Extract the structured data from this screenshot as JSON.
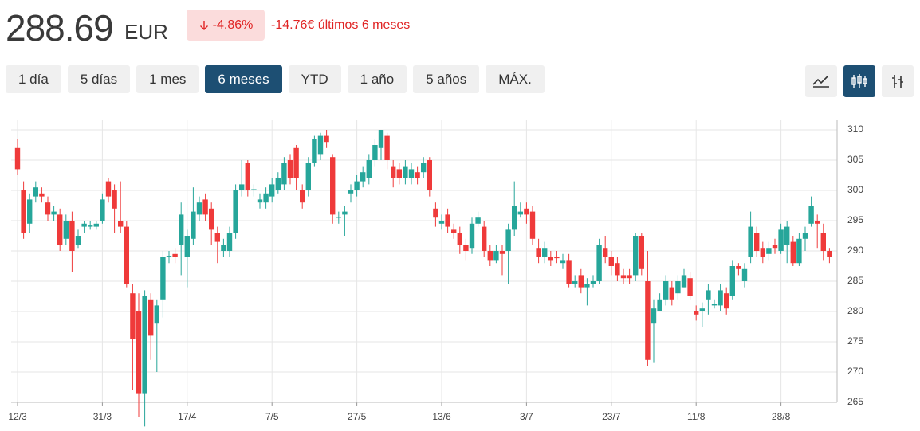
{
  "header": {
    "price": "288.69",
    "currency": "EUR",
    "change_percent": "-4.86%",
    "change_text": "-14.76€ últimos 6 meses"
  },
  "range_buttons": [
    {
      "label": "1 día",
      "selected": false
    },
    {
      "label": "5 días",
      "selected": false
    },
    {
      "label": "1 mes",
      "selected": false
    },
    {
      "label": "6 meses",
      "selected": true
    },
    {
      "label": "YTD",
      "selected": false
    },
    {
      "label": "1 año",
      "selected": false
    },
    {
      "label": "5 años",
      "selected": false
    },
    {
      "label": "MÁX.",
      "selected": false
    }
  ],
  "chart_data": {
    "type": "candlestick",
    "up_color": "#26a69a",
    "down_color": "#ef3a3a",
    "grid": true,
    "ylim": [
      265,
      310
    ],
    "yticks": [
      265,
      270,
      275,
      280,
      285,
      290,
      295,
      300,
      305,
      310
    ],
    "categories": [
      "12/3",
      null,
      null,
      null,
      null,
      null,
      null,
      null,
      null,
      null,
      null,
      null,
      null,
      null,
      "31/3",
      null,
      null,
      null,
      null,
      null,
      null,
      null,
      null,
      null,
      null,
      null,
      null,
      null,
      "17/4",
      null,
      null,
      null,
      null,
      null,
      null,
      null,
      null,
      null,
      null,
      null,
      null,
      null,
      "7/5",
      null,
      null,
      null,
      null,
      null,
      null,
      null,
      null,
      null,
      null,
      null,
      null,
      null,
      "27/5",
      null,
      null,
      null,
      null,
      null,
      null,
      null,
      null,
      null,
      null,
      null,
      null,
      null,
      "13/6",
      null,
      null,
      null,
      null,
      null,
      null,
      null,
      null,
      null,
      null,
      null,
      null,
      null,
      "3/7",
      null,
      null,
      null,
      null,
      null,
      null,
      null,
      null,
      null,
      null,
      null,
      null,
      null,
      "23/7",
      null,
      null,
      null,
      null,
      null,
      null,
      null,
      null,
      null,
      null,
      null,
      null,
      null,
      "11/8",
      null,
      null,
      null,
      null,
      null,
      null,
      null,
      null,
      null,
      null,
      null,
      null,
      null,
      "28/8",
      null,
      null,
      null,
      null,
      null,
      null,
      null,
      null
    ],
    "open": [
      307,
      300,
      294.5,
      299,
      299.5,
      298,
      296,
      296,
      292,
      295,
      291,
      294,
      294,
      294,
      295,
      301.5,
      300,
      295,
      294,
      283,
      280,
      266.5,
      282,
      278,
      282,
      289,
      289.5,
      291,
      289,
      292,
      296,
      298.5,
      297,
      293,
      290,
      290,
      293,
      300,
      304.5,
      300,
      298,
      298,
      299,
      300,
      301,
      305,
      307,
      300,
      300,
      304.5,
      306,
      309,
      305.5,
      295.5,
      296,
      299.5,
      300,
      301.5,
      302,
      305,
      307,
      309,
      304,
      303.5,
      302,
      302,
      303,
      303,
      305,
      297,
      294.5,
      296,
      293.5,
      293,
      291,
      290.5,
      294.5,
      294,
      290,
      288.5,
      290,
      290,
      293.5,
      296,
      297,
      296.5,
      290.5,
      289,
      289,
      289,
      288,
      288.5,
      284.5,
      286,
      284,
      284.5,
      285,
      290.5,
      289,
      288,
      286,
      286,
      286,
      292.5,
      285,
      278,
      280,
      282,
      284,
      283,
      284,
      285.5,
      280,
      280,
      282,
      281,
      281,
      283,
      282.5,
      287.5,
      285,
      289,
      293,
      290.5,
      289.5,
      291,
      290,
      291,
      291.5,
      288,
      292,
      294.5,
      295,
      293,
      290
    ],
    "high": [
      308.5,
      301.5,
      299.5,
      301.5,
      300.5,
      299,
      297.5,
      297,
      296,
      296.5,
      293.5,
      295,
      295,
      295,
      299.5,
      302,
      301,
      301.5,
      295,
      284.5,
      283,
      283.5,
      283,
      282,
      290,
      290,
      290.5,
      298,
      293.5,
      300.5,
      299,
      299.5,
      298,
      294,
      292,
      294,
      301,
      305,
      305,
      301,
      299.5,
      300.5,
      302,
      303,
      305.5,
      306,
      307.5,
      301,
      305.5,
      309,
      309.5,
      310,
      306,
      296.5,
      297.5,
      301,
      302.5,
      304,
      306,
      308.5,
      310,
      309.5,
      305,
      304.5,
      305,
      304.5,
      304,
      305.5,
      305.5,
      298,
      296,
      297,
      294.5,
      294,
      292,
      295.5,
      296.5,
      295,
      291,
      291,
      291,
      294.5,
      301.5,
      298,
      298,
      297.5,
      292,
      291.5,
      290,
      290,
      289.5,
      289.5,
      286,
      287,
      285.5,
      286,
      292,
      292.5,
      290,
      289,
      287,
      287,
      293,
      293,
      290,
      282,
      283,
      286,
      285,
      286,
      287,
      286.5,
      281,
      281.5,
      284.5,
      282,
      284.5,
      284,
      288.5,
      288,
      288,
      296.5,
      294,
      291.5,
      291.5,
      292,
      294.5,
      295,
      292.5,
      293,
      294,
      299,
      296,
      294.5,
      290.5
    ],
    "low": [
      302.5,
      292,
      293,
      298,
      298,
      295,
      295,
      290,
      291,
      286.5,
      290.5,
      293,
      293.5,
      293.5,
      294.5,
      298,
      293,
      293,
      284,
      267,
      262.5,
      261,
      272,
      270,
      279,
      288,
      288,
      286,
      284,
      291,
      295,
      295,
      291,
      288,
      289,
      289,
      292,
      299,
      299,
      299,
      297,
      297,
      298,
      299.5,
      300,
      301,
      300,
      297,
      299,
      304,
      305,
      307,
      294.5,
      294.5,
      292.5,
      298,
      299,
      300.5,
      301,
      304,
      305,
      303.5,
      300.5,
      301,
      301,
      301,
      301,
      302,
      299,
      294,
      293.5,
      293,
      292,
      289.5,
      288.5,
      289.5,
      294,
      289,
      287.5,
      288,
      286,
      284.5,
      292.5,
      295.5,
      294.5,
      291,
      288,
      288,
      287.5,
      288,
      287,
      284,
      284,
      283,
      281,
      284,
      284.5,
      288,
      286,
      285,
      284.5,
      284.5,
      285,
      286,
      271,
      271.5,
      280,
      281,
      281,
      282,
      284,
      282,
      278.5,
      277.5,
      279.5,
      280.5,
      280,
      279.5,
      282,
      286,
      284,
      288,
      289,
      288,
      288.5,
      289.5,
      289.5,
      288,
      287.5,
      287.5,
      290,
      294,
      290.5,
      288.5,
      288
    ],
    "close": [
      303.5,
      293,
      298.5,
      300.5,
      299,
      296,
      296.5,
      291,
      295,
      290,
      292.5,
      294.5,
      294.2,
      294.5,
      298.5,
      299,
      297,
      294,
      284.5,
      275.5,
      266.5,
      282.5,
      276,
      281,
      289,
      289.2,
      289,
      296,
      292.5,
      296.5,
      298,
      296,
      293.5,
      291.5,
      291,
      293,
      300,
      301,
      300,
      300.2,
      298.5,
      299.5,
      301,
      302,
      304.5,
      302,
      302,
      298,
      304.5,
      308.5,
      309,
      308,
      296,
      295.6,
      296.5,
      300,
      301.5,
      303,
      305,
      307.5,
      310,
      305,
      302,
      302,
      304,
      303.5,
      302,
      304.5,
      300,
      295.5,
      295,
      294,
      293,
      291,
      290,
      294.5,
      295.5,
      290,
      288.5,
      290,
      289.5,
      293.5,
      297.5,
      296.5,
      296,
      292,
      289,
      290.5,
      288.5,
      288.8,
      288.5,
      284.5,
      285,
      284,
      284.5,
      285,
      291,
      289,
      287.5,
      286,
      285.5,
      285.5,
      292.5,
      287,
      272,
      280.5,
      282,
      285,
      282,
      285,
      286,
      282.5,
      279.5,
      280.5,
      283.5,
      281.2,
      283.5,
      280.5,
      287.5,
      287,
      287,
      294,
      290,
      289,
      290.5,
      290.5,
      293.5,
      294,
      288,
      292,
      293,
      297.5,
      294.5,
      290,
      289
    ]
  }
}
